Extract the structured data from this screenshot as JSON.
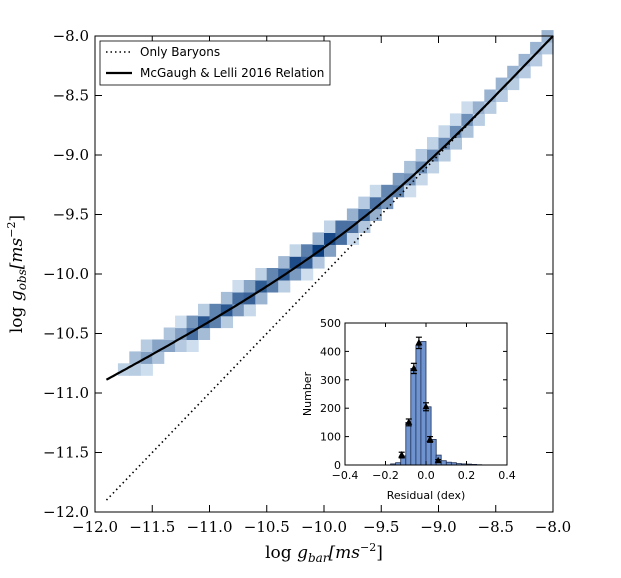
{
  "chart_data": [
    {
      "type": "heatmap",
      "name": "main",
      "xlabel_prefix": "log ",
      "xlabel_var": "g",
      "xlabel_sub": "bar",
      "xlabel_unit": "[ms",
      "xlabel_exp": "−2",
      "xlabel_close": "]",
      "ylabel_prefix": "log ",
      "ylabel_var": "g",
      "ylabel_sub": "obs",
      "ylabel_unit": "[ms",
      "ylabel_exp": "−2",
      "ylabel_close": "]",
      "xlim": [
        -12.0,
        -8.0
      ],
      "ylim": [
        -12.0,
        -8.0
      ],
      "xticks": [
        "−12.0",
        "−11.5",
        "−11.0",
        "−10.5",
        "−10.0",
        "−9.5",
        "−9.0",
        "−8.5",
        "−8.0"
      ],
      "xtick_values": [
        -12.0,
        -11.5,
        -11.0,
        -10.5,
        -10.0,
        -9.5,
        -9.0,
        -8.5,
        -8.0
      ],
      "yticks": [
        "−8.0",
        "−8.5",
        "−9.0",
        "−9.5",
        "−10.0",
        "−10.5",
        "−11.0",
        "−11.5",
        "−12.0"
      ],
      "ytick_values": [
        -8.0,
        -8.5,
        -9.0,
        -9.5,
        -10.0,
        -10.5,
        -11.0,
        -11.5,
        -12.0
      ],
      "legend": {
        "position": "top-left",
        "entries": [
          {
            "label": "Only Baryons",
            "style": "dotted"
          },
          {
            "label": "McGaugh & Lelli 2016 Relation",
            "style": "solid"
          }
        ]
      },
      "series": [
        {
          "name": "Only Baryons",
          "relation": "y = x",
          "x_range": [
            -11.9,
            -8.0
          ]
        },
        {
          "name": "McGaugh & Lelli 2016 Relation",
          "relation": "y = x - log10(1 - exp(-sqrt(10^x / 1.2e-10)))",
          "x_range": [
            -11.9,
            -8.0
          ]
        }
      ],
      "heatmap": {
        "bin_width_dex": 0.1,
        "scatter_dex": 0.06,
        "x_range": [
          -11.75,
          -8.05
        ],
        "colormap": [
          "#dbe9f6",
          "#0b3d7e"
        ]
      }
    },
    {
      "type": "bar",
      "name": "inset",
      "xlabel": "Residual (dex)",
      "ylabel": "Number",
      "xlim": [
        -0.4,
        0.4
      ],
      "ylim": [
        0,
        500
      ],
      "xticks": [
        "−0.4",
        "−0.2",
        "0.0",
        "0.2",
        "0.4"
      ],
      "xtick_values": [
        -0.4,
        -0.2,
        0.0,
        0.2,
        0.4
      ],
      "yticks": [
        "0",
        "100",
        "200",
        "300",
        "400",
        "500"
      ],
      "ytick_values": [
        0,
        100,
        200,
        300,
        400,
        500
      ],
      "bin_width": 0.025,
      "bin_starts": [
        -0.175,
        -0.15,
        -0.125,
        -0.1,
        -0.075,
        -0.05,
        -0.025,
        0.0,
        0.025,
        0.05,
        0.075,
        0.1,
        0.125,
        0.15,
        0.175,
        0.2,
        0.225,
        0.25
      ],
      "values": [
        4,
        8,
        32,
        150,
        340,
        420,
        435,
        205,
        90,
        35,
        15,
        10,
        8,
        5,
        4,
        3,
        2,
        1
      ],
      "error_points": [
        {
          "x": -0.12,
          "y": 35,
          "err": 10
        },
        {
          "x": -0.085,
          "y": 150,
          "err": 12
        },
        {
          "x": -0.06,
          "y": 340,
          "err": 18
        },
        {
          "x": -0.035,
          "y": 430,
          "err": 20
        },
        {
          "x": 0.0,
          "y": 205,
          "err": 14
        },
        {
          "x": 0.02,
          "y": 90,
          "err": 10
        },
        {
          "x": 0.06,
          "y": 15,
          "err": 4
        }
      ]
    }
  ]
}
